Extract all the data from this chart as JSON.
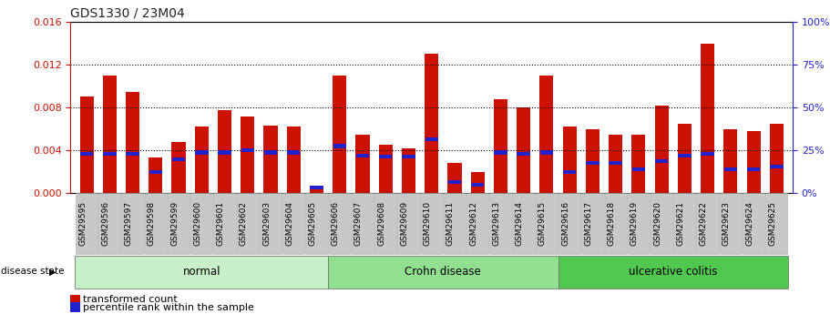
{
  "title": "GDS1330 / 23M04",
  "categories": [
    "GSM29595",
    "GSM29596",
    "GSM29597",
    "GSM29598",
    "GSM29599",
    "GSM29600",
    "GSM29601",
    "GSM29602",
    "GSM29603",
    "GSM29604",
    "GSM29605",
    "GSM29606",
    "GSM29607",
    "GSM29608",
    "GSM29609",
    "GSM29610",
    "GSM29611",
    "GSM29612",
    "GSM29613",
    "GSM29614",
    "GSM29615",
    "GSM29616",
    "GSM29617",
    "GSM29618",
    "GSM29619",
    "GSM29620",
    "GSM29621",
    "GSM29622",
    "GSM29623",
    "GSM29624",
    "GSM29625"
  ],
  "red_values": [
    0.009,
    0.011,
    0.0095,
    0.0033,
    0.0048,
    0.0062,
    0.0078,
    0.0072,
    0.0063,
    0.0062,
    0.0005,
    0.011,
    0.0055,
    0.0045,
    0.0042,
    0.013,
    0.0028,
    0.002,
    0.0088,
    0.008,
    0.011,
    0.0062,
    0.006,
    0.0055,
    0.0055,
    0.0082,
    0.0065,
    0.014,
    0.006,
    0.0058,
    0.0065
  ],
  "blue_values": [
    0.0037,
    0.0037,
    0.0037,
    0.002,
    0.0032,
    0.0038,
    0.0038,
    0.004,
    0.0038,
    0.0038,
    0.0005,
    0.0044,
    0.0035,
    0.0034,
    0.0034,
    0.005,
    0.001,
    0.0008,
    0.0038,
    0.0037,
    0.0038,
    0.002,
    0.0028,
    0.0028,
    0.0022,
    0.003,
    0.0035,
    0.0037,
    0.0022,
    0.0022,
    0.0025
  ],
  "groups": [
    {
      "label": "normal",
      "start": 0,
      "end": 10,
      "color": "#c8f0c8"
    },
    {
      "label": "Crohn disease",
      "start": 11,
      "end": 20,
      "color": "#90e090"
    },
    {
      "label": "ulcerative colitis",
      "start": 21,
      "end": 30,
      "color": "#50c850"
    }
  ],
  "ylim_left": [
    0,
    0.016
  ],
  "ylim_right": [
    0,
    100
  ],
  "yticks_left": [
    0,
    0.004,
    0.008,
    0.012,
    0.016
  ],
  "yticks_right": [
    0,
    25,
    50,
    75,
    100
  ],
  "bar_color_red": "#cc1100",
  "bar_color_blue": "#2222cc",
  "bar_width": 0.6,
  "disease_state_label": "disease state",
  "legend_red": "transformed count",
  "legend_blue": "percentile rank within the sample",
  "title_color": "#222222",
  "left_axis_color": "#cc1100",
  "right_axis_color": "#2222cc",
  "grid_color": "#000000",
  "bg_color": "#ffffff"
}
